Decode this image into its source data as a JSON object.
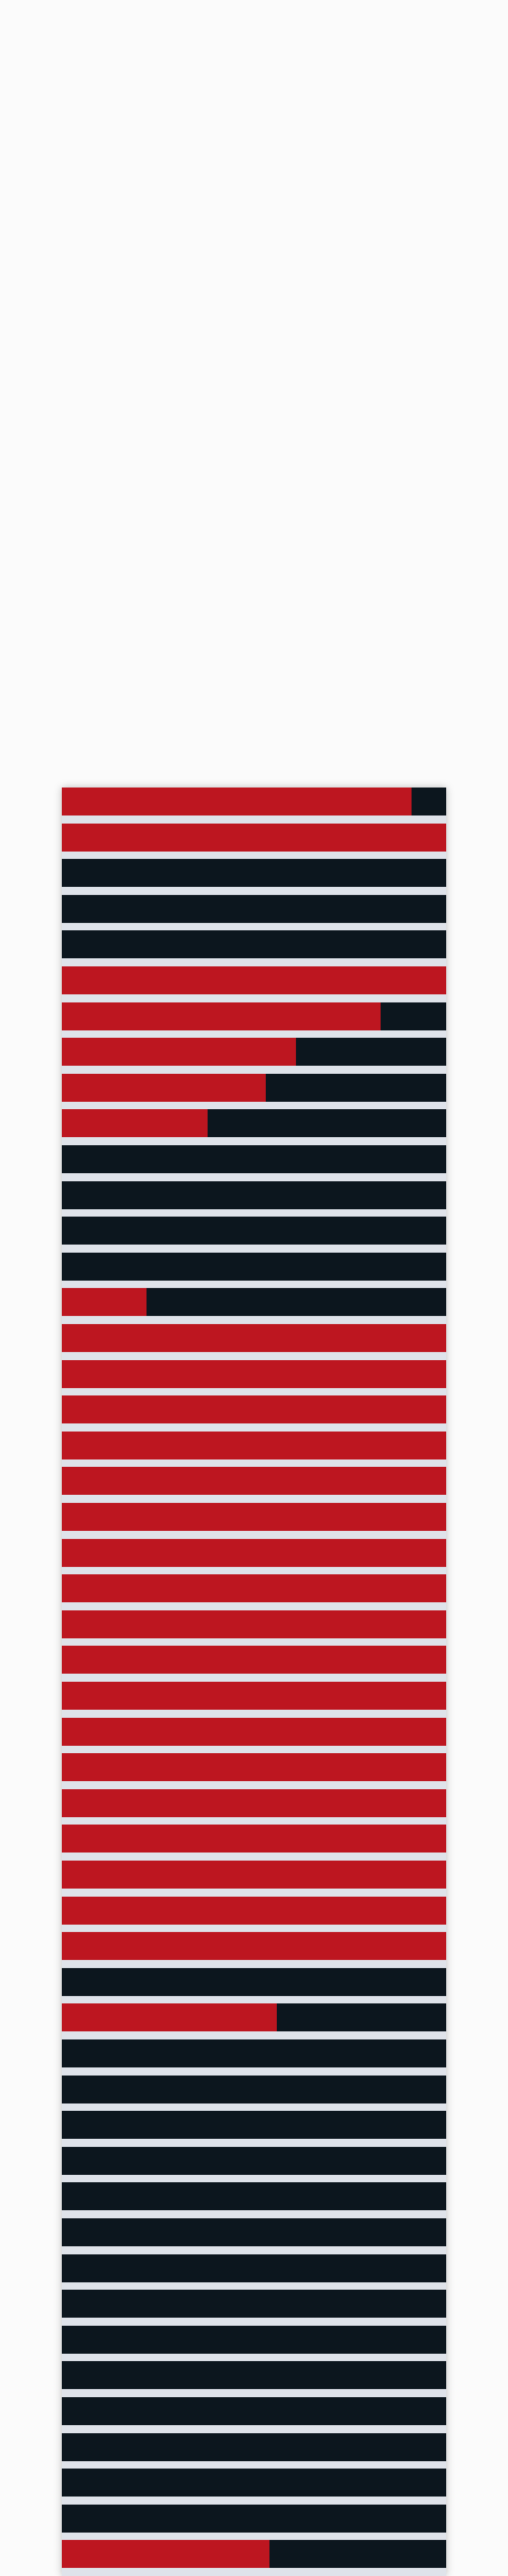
{
  "chart_data": {
    "type": "bar",
    "orientation": "horizontal",
    "stacked": true,
    "grid": false,
    "legend": "none",
    "title": "",
    "xlabel": "",
    "ylabel": "",
    "xlim": [
      0,
      1
    ],
    "colors": {
      "fill": "#bd1620",
      "remainder": "#0c161e",
      "separator": "#dfe3ea",
      "background": "#fbfbfb"
    },
    "values": [
      0.91,
      1.0,
      0.0,
      0.0,
      0.0,
      1.0,
      0.83,
      0.61,
      0.53,
      0.38,
      0.0,
      0.0,
      0.0,
      0.0,
      0.22,
      1.0,
      1.0,
      1.0,
      1.0,
      1.0,
      1.0,
      1.0,
      1.0,
      1.0,
      1.0,
      1.0,
      1.0,
      1.0,
      1.0,
      1.0,
      1.0,
      1.0,
      1.0,
      0.0,
      0.56,
      0.0,
      0.0,
      0.0,
      0.0,
      0.0,
      0.0,
      0.0,
      0.0,
      0.0,
      0.0,
      0.0,
      0.0,
      0.0,
      0.0,
      0.54
    ]
  }
}
